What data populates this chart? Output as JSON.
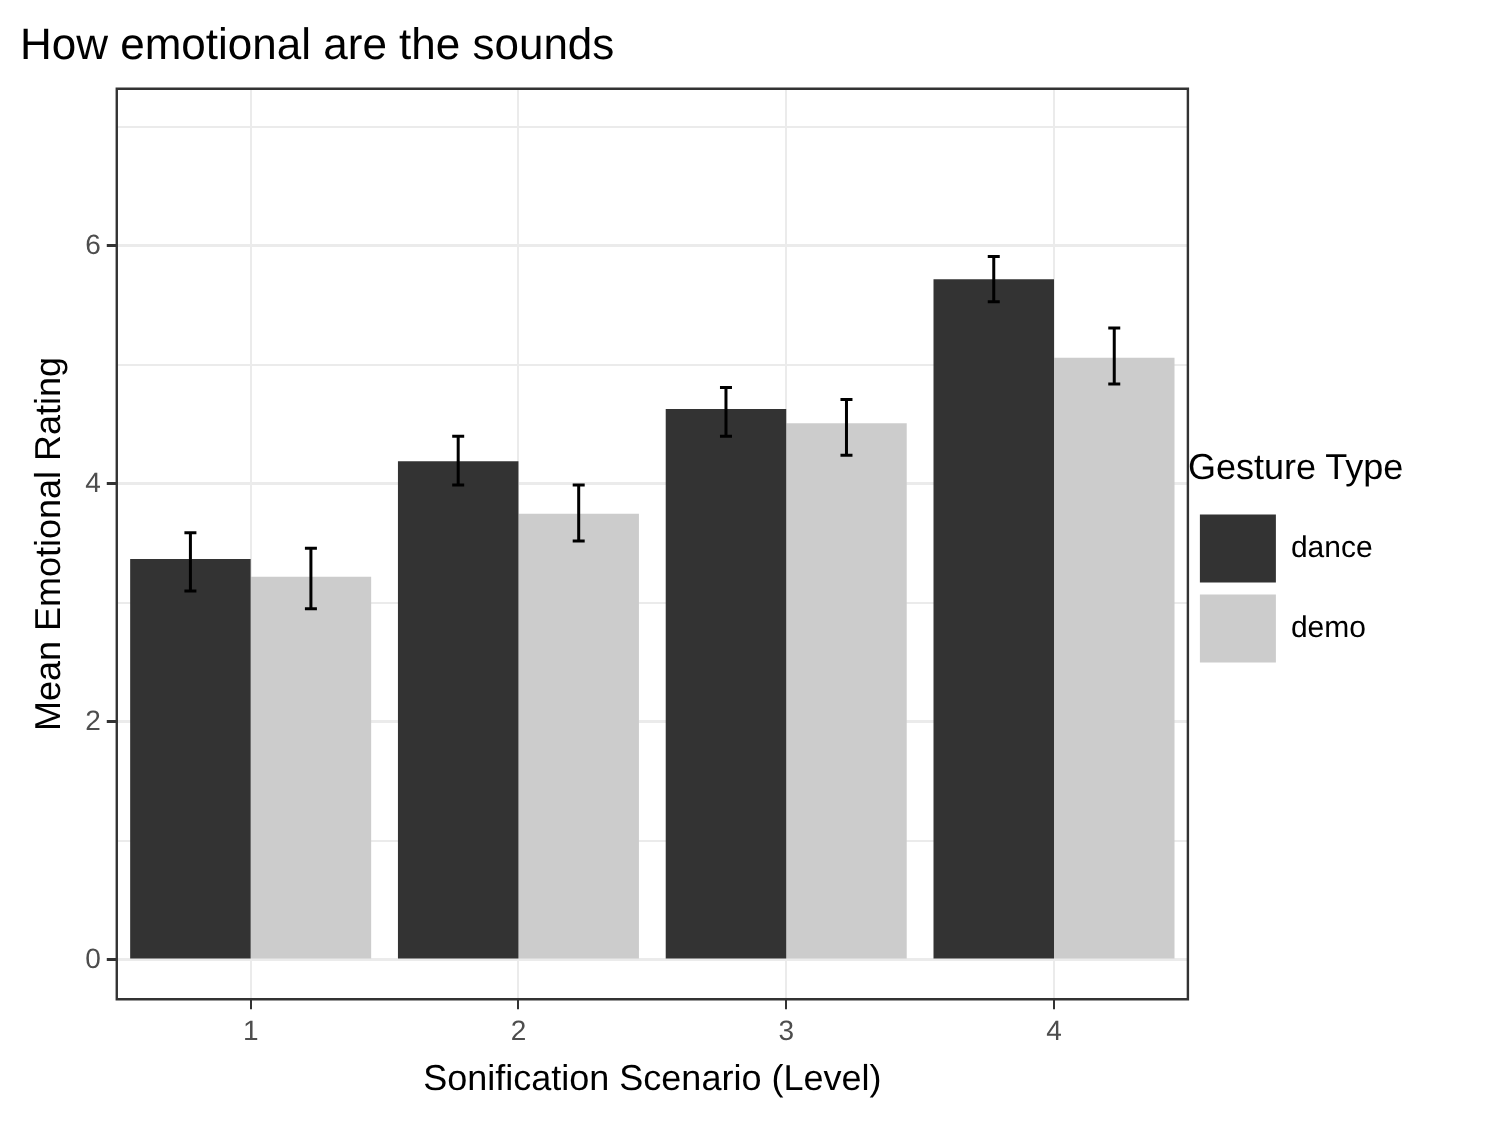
{
  "chart_data": {
    "type": "bar",
    "title": "How emotional are the sounds",
    "xlabel": "Sonification Scenario (Level)",
    "ylabel": "Mean Emotional Rating",
    "legend_title": "Gesture Type",
    "categories": [
      "1",
      "2",
      "3",
      "4"
    ],
    "series": [
      {
        "name": "dance",
        "color": "#333333",
        "values": [
          3.37,
          4.19,
          4.63,
          5.72
        ],
        "errors": [
          [
            3.1,
            3.59
          ],
          [
            3.99,
            4.4
          ],
          [
            4.4,
            4.81
          ],
          [
            5.53,
            5.91
          ]
        ]
      },
      {
        "name": "demo",
        "color": "#cccccc",
        "values": [
          3.22,
          3.75,
          4.51,
          5.06
        ],
        "errors": [
          [
            2.95,
            3.46
          ],
          [
            3.52,
            3.99
          ],
          [
            4.24,
            4.71
          ],
          [
            4.84,
            5.31
          ]
        ]
      }
    ],
    "ylim": [
      -0.33,
      7.32
    ],
    "yticks": [
      0,
      {
        "value": 1,
        "label": null
      },
      2,
      {
        "value": 3,
        "label": null
      },
      4,
      {
        "value": 5,
        "label": null
      },
      6,
      {
        "value": 7,
        "label": null
      }
    ],
    "grid": true,
    "legend": "right"
  }
}
